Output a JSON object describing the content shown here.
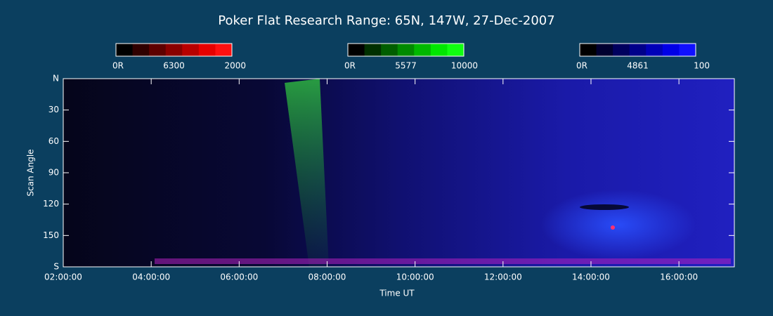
{
  "chart_data": {
    "type": "keogram",
    "title": "Poker Flat Research Range: 65N, 147W, 27-Dec-2007",
    "xlabel": "Time UT",
    "ylabel": "Scan Angle",
    "xlim": [
      2,
      17.26
    ],
    "xticks": [
      {
        "value": 2,
        "label": "02:00:00"
      },
      {
        "value": 4,
        "label": "04:00:00"
      },
      {
        "value": 6,
        "label": "06:00:00"
      },
      {
        "value": 8,
        "label": "08:00:00"
      },
      {
        "value": 10,
        "label": "10:00:00"
      },
      {
        "value": 12,
        "label": "12:00:00"
      },
      {
        "value": 14,
        "label": "14:00:00"
      },
      {
        "value": 16,
        "label": "16:00:00"
      }
    ],
    "ylim": [
      0,
      180
    ],
    "yticks": [
      {
        "value": 0,
        "label": "N"
      },
      30,
      60,
      90,
      120,
      150,
      {
        "value": 180,
        "label": "S"
      }
    ],
    "colorbars": [
      {
        "min_label": "0R",
        "wavelength": 6300,
        "max": 2000,
        "colors": [
          "#000000",
          "#300000",
          "#5e0000",
          "#8a0000",
          "#b80000",
          "#e60000",
          "#ff1010"
        ]
      },
      {
        "min_label": "0R",
        "wavelength": 5577,
        "max": 10000,
        "colors": [
          "#000000",
          "#003000",
          "#005e00",
          "#008a00",
          "#00b800",
          "#00e600",
          "#10ff10"
        ]
      },
      {
        "min_label": "0R",
        "wavelength": 4861,
        "max": 100,
        "colors": [
          "#000000",
          "#000030",
          "#00005e",
          "#00008a",
          "#0000b8",
          "#0000e6",
          "#1010ff"
        ]
      }
    ]
  }
}
